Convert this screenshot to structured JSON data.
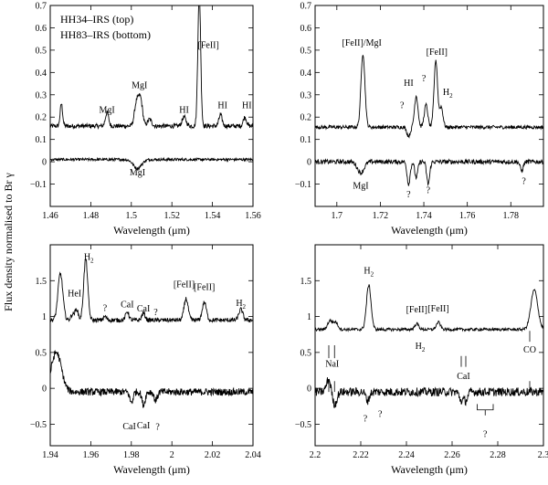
{
  "figure": {
    "ylabel": "Flux density normalised to Br γ",
    "legend_lines": [
      "HH34–IRS (top)",
      "HH83–IRS (bottom)"
    ]
  },
  "chart_data": [
    {
      "type": "line",
      "panel": "top-left",
      "xlabel": "Wavelength (μm)",
      "xlim": [
        1.46,
        1.56
      ],
      "ylim": [
        -0.2,
        0.7
      ],
      "xticks": [
        1.46,
        1.48,
        1.5,
        1.52,
        1.54,
        1.56
      ],
      "xtick_labels": [
        "1.46",
        "1.48",
        "1.5",
        "1.52",
        "1.54",
        "1.56"
      ],
      "yticks": [
        -0.1,
        0,
        0.1,
        0.2,
        0.3,
        0.4,
        0.5,
        0.6,
        0.7
      ],
      "ytick_labels": [
        "−0.1",
        "0",
        "0.1",
        "0.2",
        "0.3",
        "0.4",
        "0.5",
        "0.6",
        "0.7"
      ],
      "series": [
        {
          "baseline": 0.16,
          "noise": 0.01,
          "features": [
            {
              "x": 1.4655,
              "amp": 0.1,
              "w": 0.0006
            },
            {
              "x": 1.488,
              "amp": 0.06,
              "w": 0.0008
            },
            {
              "x": 1.5025,
              "amp": 0.1,
              "w": 0.001
            },
            {
              "x": 1.5045,
              "amp": 0.12,
              "w": 0.001
            },
            {
              "x": 1.509,
              "amp": 0.03,
              "w": 0.001
            },
            {
              "x": 1.526,
              "amp": 0.04,
              "w": 0.001
            },
            {
              "x": 1.5335,
              "amp": 0.6,
              "w": 0.0007
            },
            {
              "x": 1.544,
              "amp": 0.05,
              "w": 0.0008
            },
            {
              "x": 1.556,
              "amp": 0.04,
              "w": 0.0008
            }
          ]
        },
        {
          "baseline": 0.01,
          "noise": 0.006,
          "features": [
            {
              "x": 1.503,
              "amp": -0.04,
              "w": 0.002
            }
          ]
        }
      ],
      "annotations": [
        {
          "text": "MgI",
          "x": 1.488,
          "y": 0.22
        },
        {
          "text": "MgI",
          "x": 1.504,
          "y": 0.33
        },
        {
          "text": "HI",
          "x": 1.526,
          "y": 0.22
        },
        {
          "text": "[FeII]",
          "x": 1.538,
          "y": 0.51
        },
        {
          "text": "HI",
          "x": 1.545,
          "y": 0.24
        },
        {
          "text": "HI",
          "x": 1.557,
          "y": 0.24
        },
        {
          "text": "MgI",
          "x": 1.503,
          "y": -0.06
        }
      ]
    },
    {
      "type": "line",
      "panel": "top-right",
      "xlabel": "Wavelength (μm)",
      "xlim": [
        1.69,
        1.795
      ],
      "ylim": [
        -0.2,
        0.7
      ],
      "xticks": [
        1.7,
        1.72,
        1.74,
        1.76,
        1.78
      ],
      "xtick_labels": [
        "1.7",
        "1.72",
        "1.74",
        "1.76",
        "1.78"
      ],
      "yticks": [
        -0.1,
        0,
        0.1,
        0.2,
        0.3,
        0.4,
        0.5,
        0.6,
        0.7
      ],
      "ytick_labels": [
        "−0.1",
        "0",
        "0.1",
        "0.2",
        "0.3",
        "0.4",
        "0.5",
        "0.6",
        "0.7"
      ],
      "series": [
        {
          "baseline": 0.155,
          "noise": 0.008,
          "features": [
            {
              "x": 1.712,
              "amp": 0.33,
              "w": 0.0009
            },
            {
              "x": 1.733,
              "amp": -0.04,
              "w": 0.0008
            },
            {
              "x": 1.7365,
              "amp": 0.14,
              "w": 0.0008
            },
            {
              "x": 1.741,
              "amp": 0.1,
              "w": 0.0008
            },
            {
              "x": 1.7455,
              "amp": 0.3,
              "w": 0.0008
            },
            {
              "x": 1.748,
              "amp": 0.09,
              "w": 0.0008
            }
          ]
        },
        {
          "baseline": 0.0,
          "noise": 0.01,
          "features": [
            {
              "x": 1.711,
              "amp": -0.05,
              "w": 0.0015
            },
            {
              "x": 1.733,
              "amp": -0.1,
              "w": 0.0007
            },
            {
              "x": 1.7365,
              "amp": -0.07,
              "w": 0.0007
            },
            {
              "x": 1.742,
              "amp": -0.1,
              "w": 0.0007
            },
            {
              "x": 1.785,
              "amp": -0.04,
              "w": 0.0007
            }
          ]
        }
      ],
      "annotations": [
        {
          "text": "[FeII]/MgI",
          "x": 1.7115,
          "y": 0.52
        },
        {
          "text": "HI",
          "x": 1.733,
          "y": 0.34
        },
        {
          "text": "?",
          "x": 1.74,
          "y": 0.36
        },
        {
          "text": "[FeII]",
          "x": 1.746,
          "y": 0.48
        },
        {
          "text": "H2",
          "x": 1.751,
          "y": 0.3
        },
        {
          "text": "?",
          "x": 1.73,
          "y": 0.24
        },
        {
          "text": "MgI",
          "x": 1.711,
          "y": -0.12
        },
        {
          "text": "?",
          "x": 1.733,
          "y": -0.16
        },
        {
          "text": "?",
          "x": 1.742,
          "y": -0.14
        },
        {
          "text": "?",
          "x": 1.786,
          "y": -0.1
        }
      ]
    },
    {
      "type": "line",
      "panel": "bottom-left",
      "xlabel": "Wavelength (μm)",
      "xlim": [
        1.94,
        2.04
      ],
      "ylim": [
        -0.8,
        2.0
      ],
      "xticks": [
        1.94,
        1.96,
        1.98,
        2.0,
        2.02,
        2.04
      ],
      "xtick_labels": [
        "1.94",
        "1.96",
        "1.98",
        "2",
        "2.02",
        "2.04"
      ],
      "yticks": [
        -0.5,
        0,
        0.5,
        1,
        1.5
      ],
      "ytick_labels": [
        "−0.5",
        "0",
        "0.5",
        "1",
        "1.5"
      ],
      "series": [
        {
          "baseline": 0.95,
          "noise": 0.03,
          "features": [
            {
              "x": 1.945,
              "amp": 0.65,
              "w": 0.0012
            },
            {
              "x": 1.951,
              "amp": 0.08,
              "w": 0.0008
            },
            {
              "x": 1.953,
              "amp": 0.15,
              "w": 0.0008
            },
            {
              "x": 1.9575,
              "amp": 0.85,
              "w": 0.001
            },
            {
              "x": 1.967,
              "amp": 0.05,
              "w": 0.0008
            },
            {
              "x": 1.978,
              "amp": 0.12,
              "w": 0.0008
            },
            {
              "x": 1.986,
              "amp": 0.1,
              "w": 0.0008
            },
            {
              "x": 2.007,
              "amp": 0.3,
              "w": 0.001
            },
            {
              "x": 2.016,
              "amp": 0.25,
              "w": 0.001
            },
            {
              "x": 2.034,
              "amp": 0.15,
              "w": 0.001
            }
          ]
        },
        {
          "baseline": -0.05,
          "noise": 0.05,
          "features": [
            {
              "x": 1.943,
              "amp": 0.55,
              "w": 0.0025
            },
            {
              "x": 1.98,
              "amp": -0.15,
              "w": 0.0008
            },
            {
              "x": 1.986,
              "amp": -0.18,
              "w": 0.0008
            },
            {
              "x": 1.992,
              "amp": -0.12,
              "w": 0.0008
            }
          ]
        }
      ],
      "annotations": [
        {
          "text": "HeI",
          "x": 1.952,
          "y": 1.28
        },
        {
          "text": "H2",
          "x": 1.959,
          "y": 1.79
        },
        {
          "text": "?",
          "x": 1.967,
          "y": 1.08
        },
        {
          "text": "CaI",
          "x": 1.978,
          "y": 1.13
        },
        {
          "text": "CaI",
          "x": 1.986,
          "y": 1.07
        },
        {
          "text": "?",
          "x": 1.992,
          "y": 1.02
        },
        {
          "text": "[FeII]",
          "x": 2.006,
          "y": 1.41
        },
        {
          "text": "[FeII]",
          "x": 2.016,
          "y": 1.37
        },
        {
          "text": "H2",
          "x": 2.034,
          "y": 1.15
        },
        {
          "text": "CaI",
          "x": 1.979,
          "y": -0.57
        },
        {
          "text": "CaI",
          "x": 1.986,
          "y": -0.56
        },
        {
          "text": "?",
          "x": 1.993,
          "y": -0.58
        }
      ]
    },
    {
      "type": "line",
      "panel": "bottom-right",
      "xlabel": "Wavelength (μm)",
      "xlim": [
        2.2,
        2.3
      ],
      "ylim": [
        -0.8,
        2.0
      ],
      "xticks": [
        2.2,
        2.22,
        2.24,
        2.26,
        2.28,
        2.3
      ],
      "xtick_labels": [
        "2.2",
        "2.22",
        "2.24",
        "2.26",
        "2.28",
        "2.3"
      ],
      "yticks": [
        -0.5,
        0,
        0.5,
        1,
        1.5
      ],
      "ytick_labels": [
        "−0.5",
        "0",
        "0.5",
        "1",
        "1.5"
      ],
      "series": [
        {
          "baseline": 0.82,
          "noise": 0.02,
          "features": [
            {
              "x": 2.2065,
              "amp": 0.12,
              "w": 0.001
            },
            {
              "x": 2.209,
              "amp": 0.1,
              "w": 0.001
            },
            {
              "x": 2.2235,
              "amp": 0.62,
              "w": 0.001
            },
            {
              "x": 2.2445,
              "amp": 0.08,
              "w": 0.0009
            },
            {
              "x": 2.254,
              "amp": 0.1,
              "w": 0.0009
            },
            {
              "x": 2.296,
              "amp": 0.55,
              "w": 0.0015
            }
          ]
        },
        {
          "baseline": -0.05,
          "noise": 0.06,
          "features": [
            {
              "x": 2.206,
              "amp": 0.18,
              "w": 0.001
            },
            {
              "x": 2.2085,
              "amp": -0.18,
              "w": 0.001
            },
            {
              "x": 2.223,
              "amp": -0.12,
              "w": 0.0008
            },
            {
              "x": 2.264,
              "amp": -0.12,
              "w": 0.0008
            },
            {
              "x": 2.266,
              "amp": -0.12,
              "w": 0.0008
            }
          ]
        }
      ],
      "annotations": [
        {
          "text": "H2",
          "x": 2.2235,
          "y": 1.6
        },
        {
          "text": "[FeII]",
          "x": 2.2445,
          "y": 1.06
        },
        {
          "text": "[FeII]",
          "x": 2.254,
          "y": 1.07
        },
        {
          "text": "H2",
          "x": 2.246,
          "y": 0.55
        },
        {
          "text": "NaI",
          "x": 2.2075,
          "y": 0.3
        },
        {
          "text": "CaI",
          "x": 2.265,
          "y": 0.13
        },
        {
          "text": "CO",
          "x": 2.294,
          "y": 0.5
        },
        {
          "text": "?",
          "x": 2.222,
          "y": -0.46
        },
        {
          "text": "?",
          "x": 2.2285,
          "y": -0.4
        },
        {
          "text": "?",
          "x": 2.2745,
          "y": -0.68
        }
      ],
      "markers": [
        {
          "x": 2.206,
          "y1": 0.6,
          "y2": 0.42
        },
        {
          "x": 2.2085,
          "y1": 0.6,
          "y2": 0.42
        },
        {
          "x": 2.206,
          "y1": 0.1,
          "y2": -0.05
        },
        {
          "x": 2.2085,
          "y1": 0.1,
          "y2": -0.05
        },
        {
          "x": 2.264,
          "y1": 0.45,
          "y2": 0.3
        },
        {
          "x": 2.266,
          "y1": 0.45,
          "y2": 0.3
        },
        {
          "x": 2.294,
          "y1": 0.8,
          "y2": 0.65
        },
        {
          "x": 2.294,
          "y1": 0.1,
          "y2": -0.05
        }
      ],
      "bracket": {
        "x1": 2.271,
        "x2": 2.278,
        "y": -0.3,
        "y_top": -0.22
      }
    }
  ]
}
